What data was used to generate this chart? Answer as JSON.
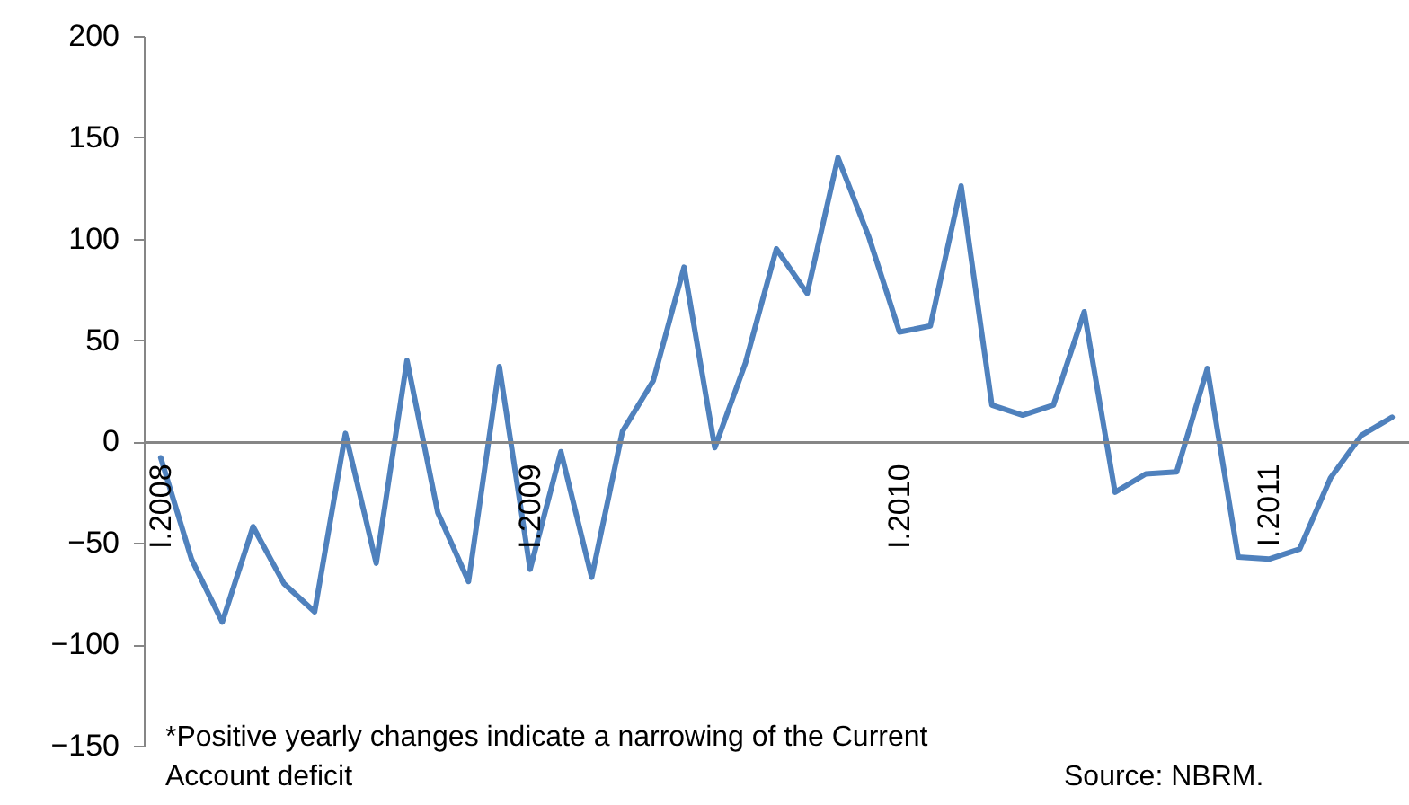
{
  "chart_data": {
    "type": "line",
    "categories": [
      "I.2008",
      null,
      null,
      null,
      null,
      null,
      null,
      null,
      null,
      null,
      null,
      null,
      "I.2009",
      null,
      null,
      null,
      null,
      null,
      null,
      null,
      null,
      null,
      null,
      null,
      "I.2010",
      null,
      null,
      null,
      null,
      null,
      null,
      null,
      null,
      null,
      null,
      null,
      "I.2011",
      null,
      null,
      null,
      null
    ],
    "series": [
      {
        "color": "#4f81bd",
        "values": [
          -8,
          -58,
          -89,
          -42,
          -70,
          -84,
          4,
          -60,
          40,
          -35,
          -69,
          37,
          -63,
          -5,
          -67,
          5,
          30,
          86,
          -3,
          39,
          95,
          73,
          140,
          101,
          54,
          57,
          126,
          18,
          13,
          18,
          64,
          -25,
          -16,
          -15,
          36,
          -57,
          -58,
          -53,
          -18,
          3,
          12
        ]
      }
    ],
    "ylim": [
      -150,
      200
    ],
    "yticks": [
      -150,
      -100,
      -50,
      0,
      50,
      100,
      150,
      200
    ],
    "grid": false,
    "marker": "none",
    "line_style": "solid",
    "annotations": [
      "*Positive yearly changes indicate a narrowing of the Current Account deficit",
      "Source: NBRM."
    ]
  }
}
